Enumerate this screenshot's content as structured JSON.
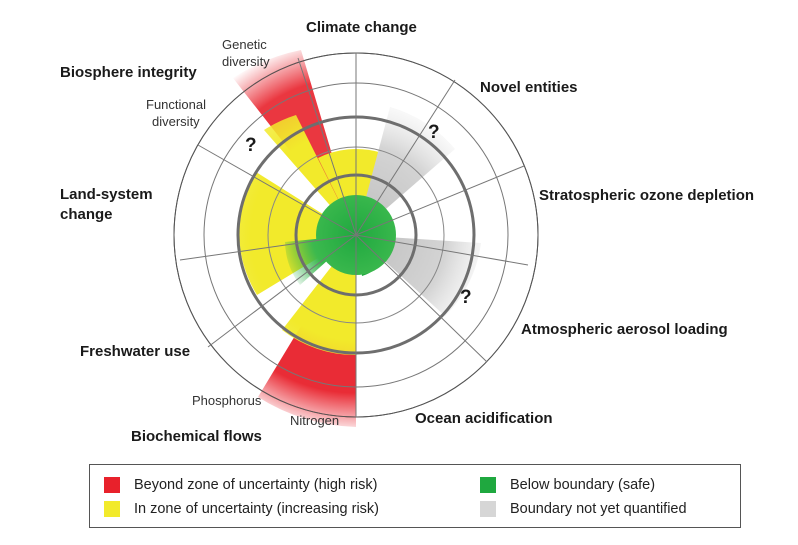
{
  "labels": {
    "climate_change": "Climate change",
    "novel_entities": "Novel entities",
    "ozone": "Stratospheric ozone depletion",
    "aerosol": "Atmospheric aerosol loading",
    "ocean": "Ocean acidification",
    "biochemical": "Biochemical flows",
    "freshwater": "Freshwater use",
    "land_system_1": "Land-system",
    "land_system_2": "change",
    "biosphere": "Biosphere integrity",
    "genetic_1": "Genetic",
    "genetic_2": "diversity",
    "functional_1": "Functional",
    "functional_2": "diversity",
    "phosphorus": "Phosphorus",
    "nitrogen": "Nitrogen",
    "unknown_mark": "?"
  },
  "legend": {
    "items": [
      {
        "label": "Beyond zone of uncertainty (high risk)",
        "color": "#e8212b"
      },
      {
        "label": "In zone of uncertainty (increasing risk)",
        "color": "#f2ea2b"
      },
      {
        "label": "Below boundary (safe)",
        "color": "#1fa83f"
      },
      {
        "label": "Boundary not yet quantified",
        "color": "#d6d6d6"
      }
    ]
  },
  "colors": {
    "red": "#e8212b",
    "yellow": "#f2ea2b",
    "green": "#1fa83f",
    "gray": "#d6d6d6",
    "ring": "#555555",
    "boundary_ring": "#6e6e6e"
  }
}
